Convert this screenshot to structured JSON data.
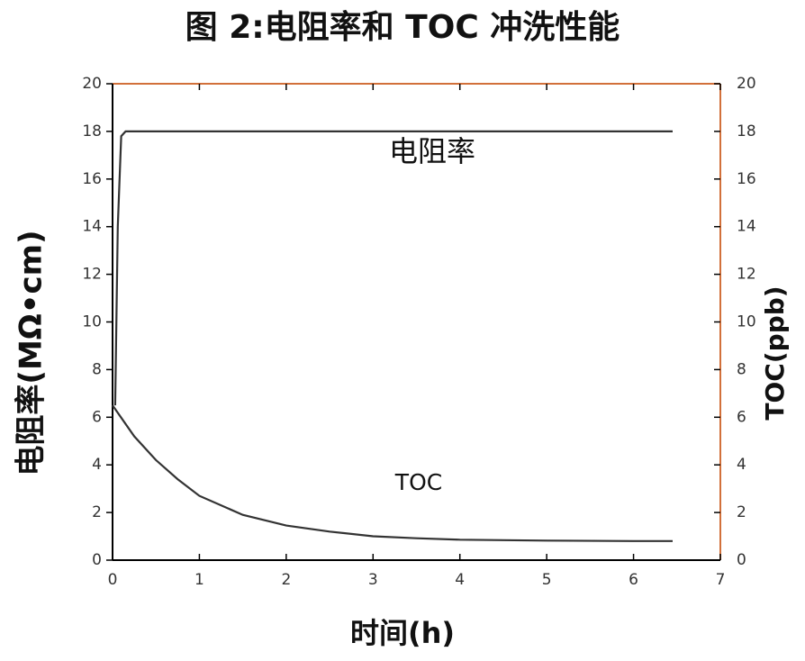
{
  "chart_data": {
    "type": "line",
    "title": "图 2:电阻率和 TOC 冲洗性能",
    "x_label": "时间(h)",
    "y_label": "电阻率(MΩ•cm)",
    "y2_label": "TOC(ppb)",
    "xlim": [
      0,
      7
    ],
    "xticks": [
      0,
      1,
      2,
      3,
      4,
      5,
      6,
      7
    ],
    "ylim": [
      0,
      20
    ],
    "yticks": [
      0,
      2,
      4,
      6,
      8,
      10,
      12,
      14,
      16,
      18,
      20
    ],
    "y2lim": [
      0,
      20
    ],
    "y2ticks": [
      0,
      2,
      4,
      6,
      8,
      10,
      12,
      14,
      16,
      18,
      20
    ],
    "series": [
      {
        "name": "电阻率",
        "color": "#333333",
        "x": [
          0.03,
          0.06,
          0.1,
          0.15,
          6.45
        ],
        "values": [
          6.5,
          14,
          17.8,
          18,
          18
        ]
      },
      {
        "name": "TOC",
        "color": "#333333",
        "x": [
          0,
          0.25,
          0.5,
          0.75,
          1,
          1.5,
          2,
          2.5,
          3,
          3.5,
          4,
          5,
          6,
          6.45
        ],
        "values": [
          6.5,
          5.2,
          4.2,
          3.4,
          2.7,
          1.9,
          1.45,
          1.2,
          1.0,
          0.92,
          0.86,
          0.82,
          0.8,
          0.8
        ]
      }
    ]
  }
}
